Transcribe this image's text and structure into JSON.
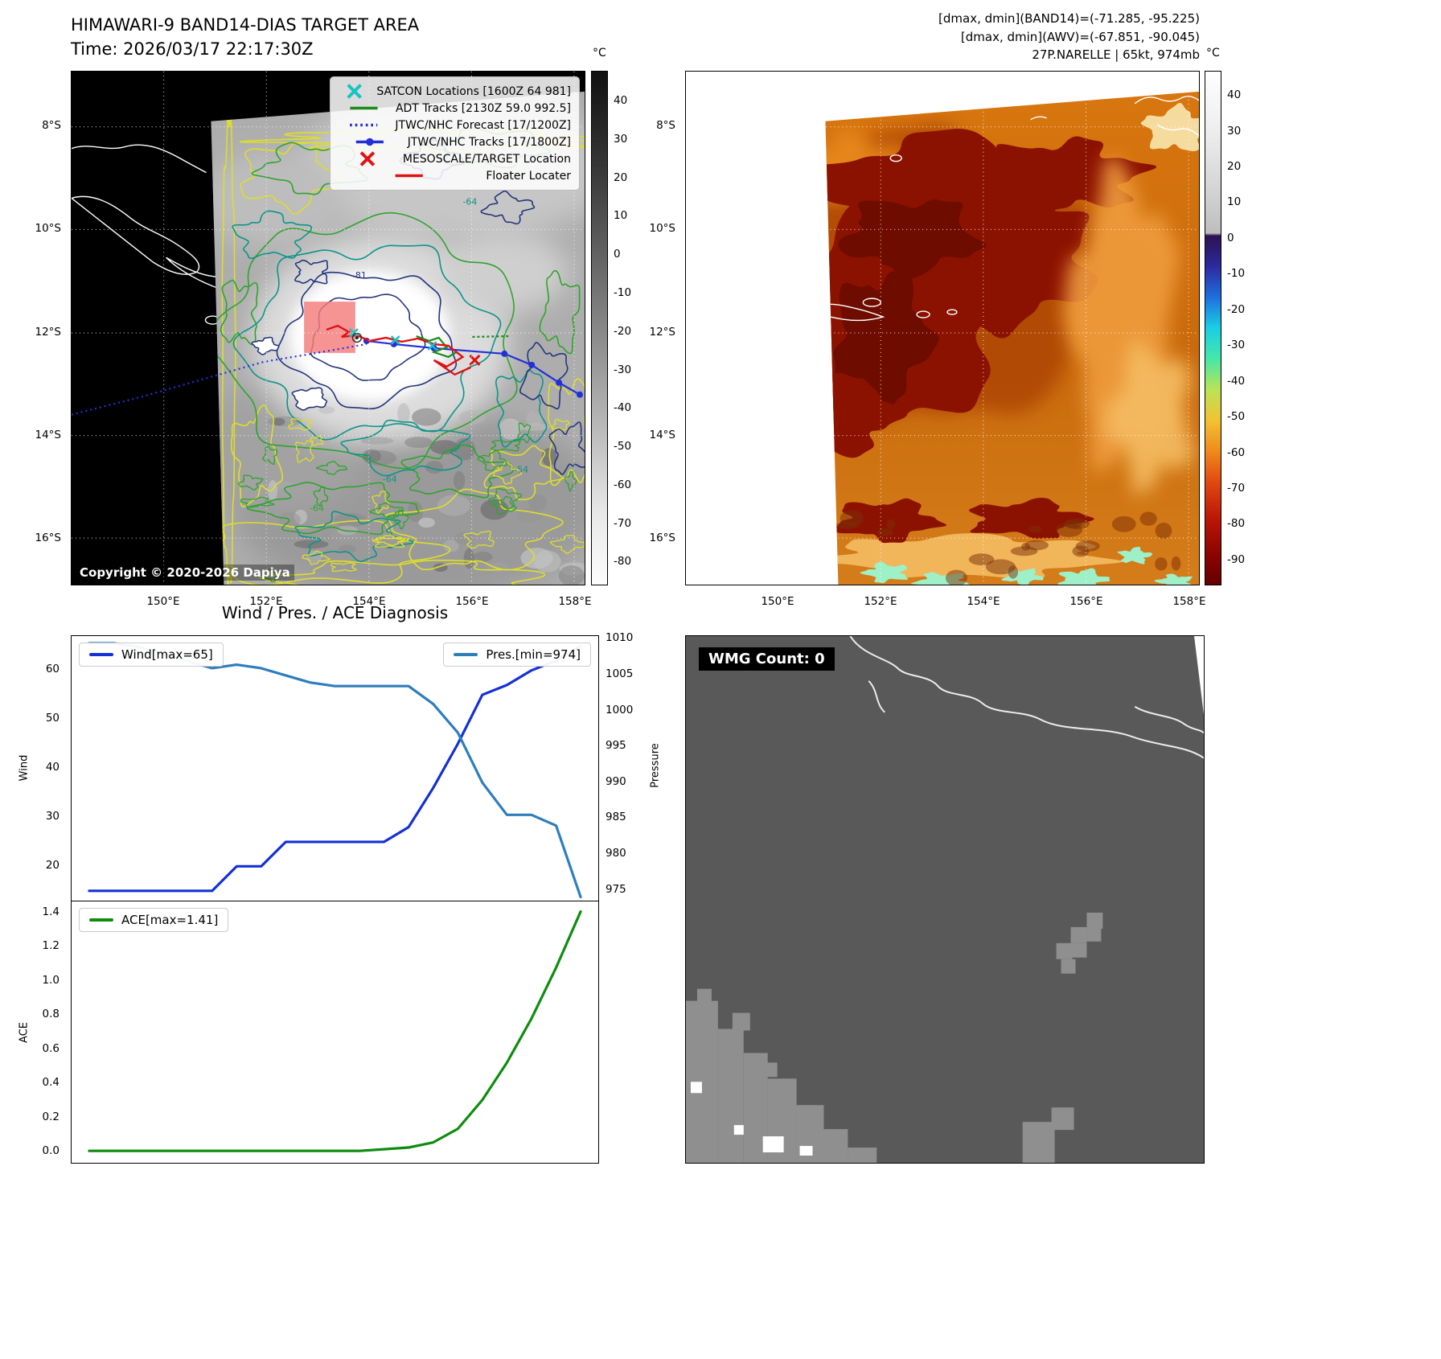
{
  "panel_band14": {
    "title": "HIMAWARI-9 BAND14-DIAS TARGET AREA",
    "subtitle": "Time: 2026/03/17 22:17:30Z",
    "copyright": "Copyright © 2020-2026 Dapiya",
    "colorbar": {
      "unit": "°C",
      "ticks": [
        "40",
        "30",
        "20",
        "10",
        "0",
        "-10",
        "-20",
        "-30",
        "-40",
        "-50",
        "-60",
        "-70",
        "-80"
      ]
    },
    "y_ticks": [
      "8°S",
      "10°S",
      "12°S",
      "14°S",
      "16°S"
    ],
    "x_ticks": [
      "150°E",
      "152°E",
      "154°E",
      "156°E",
      "158°E"
    ],
    "legend": [
      {
        "label": "SATCON Locations [1600Z 64 981]",
        "marker": "x",
        "color": "#17c3c3"
      },
      {
        "label": "ADT Tracks [2130Z 59.0 992.5]",
        "marker": "line",
        "color": "#1c8a1c"
      },
      {
        "label": "JTWC/NHC Forecast [17/1200Z]",
        "marker": "dotted",
        "color": "#2330d8"
      },
      {
        "label": "JTWC/NHC Tracks [17/1800Z]",
        "marker": "line-dot",
        "color": "#2330d8"
      },
      {
        "label": "MESOSCALE/TARGET Location",
        "marker": "x",
        "color": "#e01212"
      },
      {
        "label": "Floater Locater",
        "marker": "line",
        "color": "#e01212"
      }
    ],
    "contour_labels": [
      "-64",
      "-81",
      "-54",
      "-64",
      "-64"
    ]
  },
  "panel_awv": {
    "header_lines": [
      "[dmax, dmin](BAND14)=(-71.285, -95.225)",
      "[dmax, dmin](AWV)=(-67.851, -90.045)",
      "27P.NARELLE | 65kt, 974mb"
    ],
    "colorbar": {
      "unit": "°C",
      "ticks": [
        "40",
        "30",
        "20",
        "10",
        "0",
        "-10",
        "-20",
        "-30",
        "-40",
        "-50",
        "-60",
        "-70",
        "-80",
        "-90"
      ]
    },
    "y_ticks": [
      "8°S",
      "10°S",
      "12°S",
      "14°S",
      "16°S"
    ],
    "x_ticks": [
      "150°E",
      "152°E",
      "154°E",
      "156°E",
      "158°E"
    ]
  },
  "panel_diagnosis": {
    "title": "Wind / Pres. / ACE Diagnosis",
    "ylabel_wind": "Wind",
    "ylabel_pressure": "Pressure",
    "ylabel_ace": "ACE"
  },
  "panel_wmg": {
    "label": "WMG Count: 0"
  },
  "chart_data": [
    {
      "type": "line",
      "title": "Wind / Pres. / ACE Diagnosis",
      "x": [
        0,
        1,
        2,
        3,
        4,
        5,
        6,
        7,
        8,
        9,
        10,
        11,
        12,
        13,
        14,
        15,
        16,
        17,
        18,
        19,
        20
      ],
      "series": [
        {
          "name": "Wind[max=65]",
          "axis": "left",
          "color": "#1430d6",
          "values": [
            15,
            15,
            15,
            15,
            15,
            15,
            20,
            20,
            25,
            25,
            25,
            25,
            25,
            28,
            36,
            45,
            55,
            57,
            60,
            62,
            65
          ]
        },
        {
          "name": "Pres.[min=974]",
          "axis": "right",
          "color": "#2e7ebc",
          "values": [
            1009.5,
            1009.5,
            1009,
            1008,
            1007,
            1006,
            1006.5,
            1006,
            1005,
            1004,
            1003.5,
            1003.5,
            1003.5,
            1003.5,
            1001,
            997,
            990,
            985.5,
            985.5,
            984,
            974
          ]
        }
      ],
      "left_ylabel": "Wind",
      "right_ylabel": "Pressure",
      "left_ylim": [
        13,
        67
      ],
      "right_ylim": [
        973.5,
        1010.5
      ],
      "left_ticks": [
        "20",
        "30",
        "40",
        "50",
        "60"
      ],
      "right_ticks": [
        "975",
        "980",
        "985",
        "990",
        "995",
        "1000",
        "1005",
        "1010"
      ],
      "legend_positions": {
        "wind": "top-left",
        "pressure": "top-right"
      },
      "grid": false
    },
    {
      "type": "line",
      "x": [
        0,
        1,
        2,
        3,
        4,
        5,
        6,
        7,
        8,
        9,
        10,
        11,
        12,
        13,
        14,
        15,
        16,
        17,
        18,
        19,
        20
      ],
      "series": [
        {
          "name": "ACE[max=1.41]",
          "color": "#0e8c0e",
          "values": [
            0,
            0,
            0,
            0,
            0,
            0,
            0,
            0,
            0,
            0,
            0,
            0,
            0.01,
            0.02,
            0.05,
            0.13,
            0.3,
            0.52,
            0.78,
            1.08,
            1.41
          ]
        }
      ],
      "ylabel": "ACE",
      "ylim": [
        -0.07,
        1.47
      ],
      "ticks": [
        "0.0",
        "0.2",
        "0.4",
        "0.6",
        "0.8",
        "1.0",
        "1.2",
        "1.4"
      ],
      "legend_positions": {
        "ace": "top-left"
      },
      "grid": false
    }
  ]
}
